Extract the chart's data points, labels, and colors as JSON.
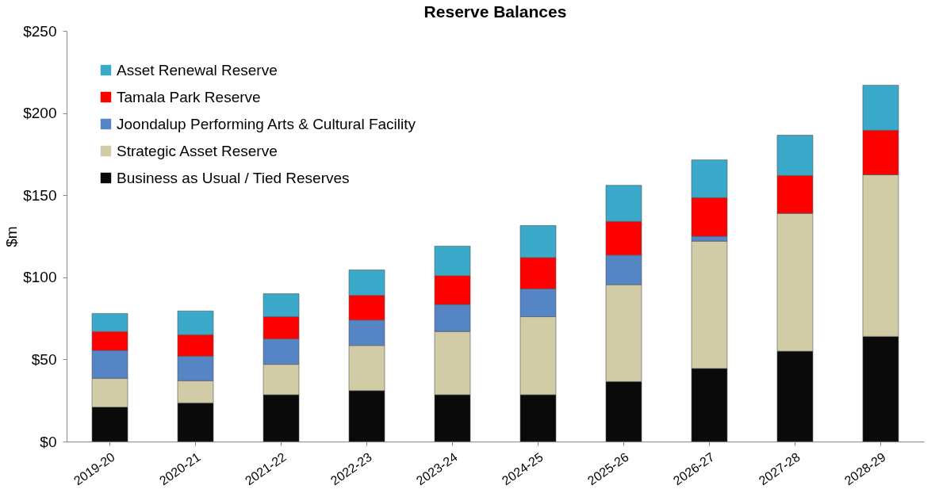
{
  "chart_data": {
    "type": "bar",
    "title": "Reserve Balances",
    "ylabel": "$m",
    "stacked": true,
    "categories": [
      "2019-20",
      "2020-21",
      "2021-22",
      "2022-23",
      "2023-24",
      "2024-25",
      "2025-26",
      "2026-27",
      "2027-28",
      "2028-29"
    ],
    "series": [
      {
        "name": "Business as Usual / Tied Reserves",
        "color": "#0a0a0a",
        "values": [
          21,
          23.5,
          28.5,
          31,
          28.5,
          28.5,
          36.5,
          44.5,
          55,
          64
        ]
      },
      {
        "name": "Strategic Asset Reserve",
        "color": "#d1cba6",
        "values": [
          17.5,
          13.5,
          18.5,
          27.5,
          38.5,
          47.5,
          59,
          77.5,
          84,
          98.5
        ]
      },
      {
        "name": "Joondalup Performing Arts & Cultural Facility",
        "color": "#5585c5",
        "values": [
          17,
          15,
          15.5,
          15.5,
          16.5,
          17,
          18,
          3,
          0,
          0
        ]
      },
      {
        "name": "Tamala Park Reserve",
        "color": "#ff0000",
        "values": [
          11.5,
          13,
          13.5,
          15,
          17.5,
          19,
          20.5,
          23.5,
          23,
          27
        ]
      },
      {
        "name": "Asset Renewal Reserve",
        "color": "#3ba9c9",
        "values": [
          11,
          14.5,
          14,
          15.5,
          18,
          19.5,
          22,
          23,
          24.5,
          27.5
        ]
      }
    ],
    "ylim": [
      0,
      250
    ],
    "yticks": [
      {
        "value": 0,
        "label": "$0"
      },
      {
        "value": 50,
        "label": "$50"
      },
      {
        "value": 100,
        "label": "$100"
      },
      {
        "value": 150,
        "label": "$150"
      },
      {
        "value": 200,
        "label": "$200"
      },
      {
        "value": 250,
        "label": "$250"
      }
    ],
    "grid": false,
    "legend": "top left"
  }
}
